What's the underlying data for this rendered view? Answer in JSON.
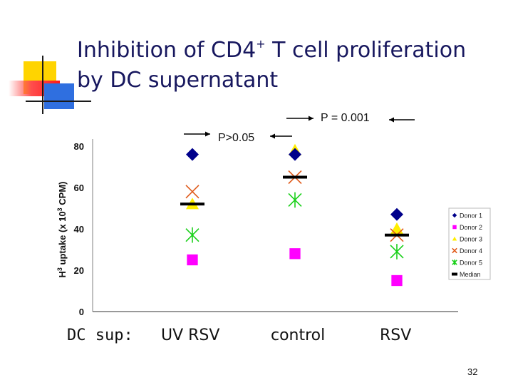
{
  "slide": {
    "title_line1_main": "Inhibition of CD4",
    "title_line1_sup": "+",
    "title_line1_rest": " T cell proliferation",
    "title_line2": "by DC supernatant",
    "row_label": "DC sup:",
    "page_number": "32"
  },
  "chart_data": {
    "type": "scatter",
    "categories": [
      "UV RSV",
      "control",
      "RSV"
    ],
    "ylabel": "H3 uptake (x 103 CPM)",
    "ylim": [
      0,
      80
    ],
    "yticks": [
      0,
      20,
      40,
      60,
      80
    ],
    "grid": false,
    "legend_position": "right",
    "series": [
      {
        "name": "Donor 1",
        "marker": "diamond",
        "color": "#00008b",
        "values": [
          76,
          76,
          47
        ]
      },
      {
        "name": "Donor 2",
        "marker": "square",
        "color": "#ff00ff",
        "values": [
          25,
          28,
          15
        ]
      },
      {
        "name": "Donor 3",
        "marker": "triangle",
        "color": "#ffee00",
        "values": [
          52,
          78,
          40
        ]
      },
      {
        "name": "Donor 4",
        "marker": "x",
        "color": "#e05a1a",
        "values": [
          58,
          65,
          37
        ]
      },
      {
        "name": "Donor 5",
        "marker": "asterisk",
        "color": "#1ad01a",
        "values": [
          37,
          54,
          29
        ]
      }
    ],
    "median": {
      "name": "Median",
      "marker": "bar",
      "color": "#000000",
      "values": [
        52,
        65,
        37
      ]
    },
    "annotations": [
      {
        "text": "P>0.05",
        "between": [
          "UV RSV",
          "control"
        ]
      },
      {
        "text": "P = 0.001",
        "between": [
          "control",
          "RSV"
        ]
      }
    ]
  }
}
